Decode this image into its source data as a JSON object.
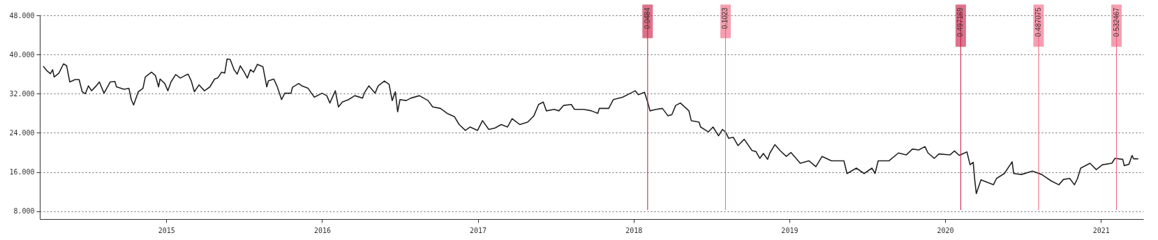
{
  "chart_data": {
    "type": "line",
    "xlim": [
      2014.21,
      2021.25
    ],
    "ylim": [
      6.4,
      48
    ],
    "xticks": [
      2015,
      2016,
      2017,
      2018,
      2019,
      2020,
      2021
    ],
    "yticks": [
      {
        "value": 8,
        "label": "8.000"
      },
      {
        "value": 16,
        "label": "16.000"
      },
      {
        "value": 24,
        "label": "24.000"
      },
      {
        "value": 32,
        "label": "32.000"
      },
      {
        "value": 40,
        "label": "40.000"
      },
      {
        "value": 48,
        "label": "48.000"
      }
    ],
    "grid": "y",
    "x": [
      2014.21,
      2014.233,
      2014.256,
      2014.27,
      2014.28,
      2014.31,
      2014.34,
      2014.36,
      2014.38,
      2014.415,
      2014.44,
      2014.46,
      2014.48,
      2014.5,
      2014.52,
      2014.55,
      2014.57,
      2014.6,
      2014.64,
      2014.67,
      2014.68,
      2014.73,
      2014.76,
      2014.775,
      2014.79,
      2014.82,
      2014.85,
      2014.865,
      2014.905,
      2014.93,
      2014.95,
      2014.96,
      2014.99,
      2015.01,
      2015.03,
      2015.06,
      2015.09,
      2015.12,
      2015.14,
      2015.16,
      2015.18,
      2015.21,
      2015.245,
      2015.28,
      2015.31,
      2015.33,
      2015.355,
      2015.375,
      2015.39,
      2015.41,
      2015.435,
      2015.455,
      2015.475,
      2015.5,
      2015.52,
      2015.54,
      2015.56,
      2015.585,
      2015.62,
      2015.645,
      2015.655,
      2015.69,
      2015.71,
      2015.74,
      2015.76,
      2015.8,
      2015.81,
      2015.85,
      2015.87,
      2015.91,
      2015.95,
      2016.0,
      2016.03,
      2016.05,
      2016.085,
      2016.105,
      2016.13,
      2016.17,
      2016.21,
      2016.26,
      2016.27,
      2016.3,
      2016.34,
      2016.36,
      2016.4,
      2016.43,
      2016.45,
      2016.47,
      2016.485,
      2016.5,
      2016.54,
      2016.57,
      2016.625,
      2016.68,
      2016.71,
      2016.76,
      2016.807,
      2016.85,
      2016.88,
      2016.92,
      2016.95,
      2016.998,
      2017.03,
      2017.07,
      2017.11,
      2017.15,
      2017.19,
      2017.22,
      2017.27,
      2017.32,
      2017.36,
      2017.39,
      2017.42,
      2017.44,
      2017.49,
      2017.52,
      2017.55,
      2017.6,
      2017.62,
      2017.68,
      2017.73,
      2017.77,
      2017.78,
      2017.84,
      2017.87,
      2017.93,
      2017.98,
      2018.01,
      2018.03,
      2018.07,
      2018.09,
      2018.105,
      2018.145,
      2018.185,
      2018.22,
      2018.245,
      2018.27,
      2018.3,
      2018.355,
      2018.37,
      2018.42,
      2018.43,
      2018.48,
      2018.51,
      2018.545,
      2018.57,
      2018.59,
      2018.61,
      2018.64,
      2018.67,
      2018.71,
      2018.76,
      2018.785,
      2018.81,
      2018.833,
      2018.86,
      2018.875,
      2018.907,
      2018.94,
      2018.98,
      2019.01,
      2019.07,
      2019.125,
      2019.17,
      2019.21,
      2019.27,
      2019.35,
      2019.37,
      2019.43,
      2019.48,
      2019.53,
      2019.55,
      2019.57,
      2019.64,
      2019.7,
      2019.75,
      2019.79,
      2019.83,
      2019.87,
      2019.89,
      2019.93,
      2019.96,
      2020.03,
      2020.06,
      2020.09,
      2020.14,
      2020.16,
      2020.18,
      2020.19,
      2020.2,
      2020.23,
      2020.27,
      2020.31,
      2020.33,
      2020.38,
      2020.43,
      2020.44,
      2020.49,
      2020.56,
      2020.62,
      2020.68,
      2020.73,
      2020.76,
      2020.8,
      2020.83,
      2020.85,
      2020.87,
      2020.93,
      2020.97,
      2021.01,
      2021.07,
      2021.09,
      2021.14,
      2021.15,
      2021.18,
      2021.2,
      2021.21,
      2021.24
    ],
    "series": [
      {
        "color": "#222222",
        "values": [
          37.6,
          36.7,
          36.1,
          36.9,
          35.4,
          36.2,
          38.1,
          37.7,
          34.4,
          34.9,
          34.9,
          32.4,
          32.0,
          33.6,
          32.6,
          33.6,
          34.4,
          32.1,
          34.4,
          34.5,
          33.4,
          32.9,
          33.1,
          30.8,
          29.7,
          32.4,
          33.1,
          35.4,
          36.4,
          35.7,
          33.4,
          35.0,
          34.1,
          32.6,
          34.4,
          35.9,
          35.2,
          35.7,
          36.0,
          34.6,
          32.4,
          33.8,
          32.6,
          33.4,
          35.0,
          35.2,
          36.4,
          36.2,
          39.1,
          39.0,
          36.9,
          36.0,
          37.7,
          36.4,
          35.2,
          36.9,
          36.4,
          38.0,
          37.5,
          33.4,
          34.6,
          35.0,
          33.6,
          30.8,
          32.1,
          32.1,
          33.3,
          34.1,
          33.6,
          33.1,
          31.3,
          32.1,
          31.6,
          30.1,
          32.6,
          29.3,
          30.3,
          30.8,
          31.6,
          31.1,
          32.1,
          33.6,
          32.1,
          33.6,
          34.6,
          33.9,
          30.6,
          32.4,
          28.3,
          30.8,
          30.6,
          31.1,
          31.6,
          30.6,
          29.3,
          29.0,
          27.9,
          27.3,
          25.7,
          24.5,
          25.2,
          24.5,
          26.5,
          24.7,
          25.0,
          25.7,
          25.2,
          26.9,
          25.7,
          26.2,
          27.5,
          29.8,
          30.3,
          28.5,
          28.8,
          28.5,
          29.6,
          29.8,
          28.8,
          28.8,
          28.5,
          28.0,
          29.0,
          29.0,
          30.8,
          31.3,
          32.1,
          32.6,
          31.8,
          32.3,
          30.3,
          28.5,
          28.8,
          29.0,
          27.5,
          27.7,
          29.6,
          30.1,
          28.5,
          26.5,
          26.2,
          25.2,
          24.2,
          25.2,
          23.4,
          24.7,
          24.2,
          22.9,
          23.1,
          21.4,
          22.7,
          20.4,
          20.2,
          18.8,
          19.8,
          18.6,
          19.9,
          21.6,
          20.4,
          19.2,
          20.0,
          17.8,
          18.3,
          17.1,
          19.2,
          18.3,
          18.3,
          15.7,
          16.8,
          15.7,
          16.8,
          15.7,
          18.3,
          18.3,
          19.9,
          19.5,
          20.7,
          20.5,
          21.2,
          19.9,
          18.8,
          19.7,
          19.5,
          20.3,
          19.4,
          20.1,
          17.5,
          18.0,
          14.4,
          11.6,
          14.4,
          13.9,
          13.4,
          14.7,
          15.7,
          18.1,
          15.7,
          15.5,
          16.2,
          15.5,
          14.2,
          13.4,
          14.5,
          14.7,
          13.4,
          14.7,
          16.8,
          17.8,
          16.5,
          17.5,
          17.8,
          18.8,
          18.6,
          17.3,
          17.6,
          19.4,
          18.7,
          18.7
        ]
      }
    ],
    "ref_lines": [
      {
        "axis": "x",
        "value": 2018.09,
        "color": "#c8163c"
      },
      {
        "axis": "x",
        "value": 2018.59,
        "color": "#f0607c"
      },
      {
        "axis": "x",
        "value": 2020.1,
        "color": "#c8163c"
      },
      {
        "axis": "x",
        "value": 2020.6,
        "color": "#f0607c"
      },
      {
        "axis": "x",
        "value": 2021.1,
        "color": "#f0607c"
      }
    ],
    "annotations": [
      {
        "text": "0.0484",
        "x": 2018.09
      },
      {
        "text": "0.1023",
        "x": 2018.59
      },
      {
        "text": "0.497169",
        "x": 2020.1
      },
      {
        "text": "0.487075",
        "x": 2020.6
      },
      {
        "text": "0.532467",
        "x": 2021.1
      }
    ]
  }
}
